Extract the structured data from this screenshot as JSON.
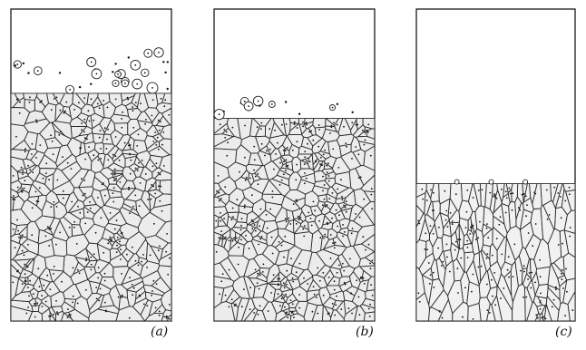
{
  "panels": [
    {
      "label": "(a)",
      "front_level": 0.27,
      "particle_band": 0.12,
      "growth": "equiaxed"
    },
    {
      "label": "(b)",
      "front_level": 0.35,
      "particle_band": 0.05,
      "growth": "equiaxed"
    },
    {
      "label": "(c)",
      "front_level": 0.56,
      "particle_band": 0.0,
      "growth": "columnar"
    }
  ],
  "colors": {
    "grain_fill": "#ececec",
    "boundary": "#2b2b2b",
    "frame": "#1a1a1a",
    "background": "#ffffff"
  }
}
